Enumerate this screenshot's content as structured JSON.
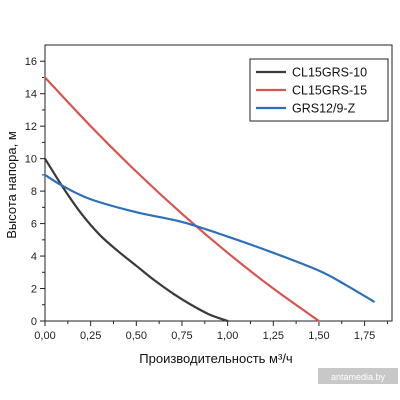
{
  "chart_data": {
    "type": "line",
    "xlabel": "Производительность м³/ч",
    "ylabel": "Высота напора, м",
    "xlim": [
      0,
      1.9
    ],
    "ylim": [
      0,
      17
    ],
    "x_ticks": [
      0,
      0.25,
      0.5,
      0.75,
      1.0,
      1.25,
      1.5,
      1.75
    ],
    "x_tick_labels": [
      "0,00",
      "0,25",
      "0,50",
      "0,75",
      "1,00",
      "1,25",
      "1,50",
      "1,75"
    ],
    "y_ticks": [
      0,
      2,
      4,
      6,
      8,
      10,
      12,
      14,
      16
    ],
    "y_tick_labels": [
      "0",
      "2",
      "4",
      "6",
      "8",
      "10",
      "12",
      "14",
      "16"
    ],
    "grid": false,
    "legend_position": "top-right",
    "series": [
      {
        "name": "CL15GRS-10",
        "color": "#3a3a3a",
        "points": [
          [
            0,
            10
          ],
          [
            0.1,
            8.2
          ],
          [
            0.2,
            6.6
          ],
          [
            0.3,
            5.3
          ],
          [
            0.4,
            4.3
          ],
          [
            0.5,
            3.4
          ],
          [
            0.6,
            2.5
          ],
          [
            0.7,
            1.7
          ],
          [
            0.8,
            1.0
          ],
          [
            0.9,
            0.4
          ],
          [
            1.0,
            0
          ]
        ]
      },
      {
        "name": "CL15GRS-15",
        "color": "#d9534f",
        "points": [
          [
            0,
            15
          ],
          [
            0.25,
            12.0
          ],
          [
            0.5,
            9.2
          ],
          [
            0.75,
            6.6
          ],
          [
            1.0,
            4.2
          ],
          [
            1.25,
            2.0
          ],
          [
            1.5,
            0
          ]
        ]
      },
      {
        "name": "GRS12/9-Z",
        "color": "#2d6fba",
        "points": [
          [
            0,
            9.0
          ],
          [
            0.1,
            8.3
          ],
          [
            0.25,
            7.5
          ],
          [
            0.5,
            6.7
          ],
          [
            0.75,
            6.1
          ],
          [
            1.0,
            5.2
          ],
          [
            1.25,
            4.2
          ],
          [
            1.5,
            3.1
          ],
          [
            1.65,
            2.2
          ],
          [
            1.8,
            1.2
          ]
        ]
      }
    ]
  },
  "watermark": "antamedia.by"
}
